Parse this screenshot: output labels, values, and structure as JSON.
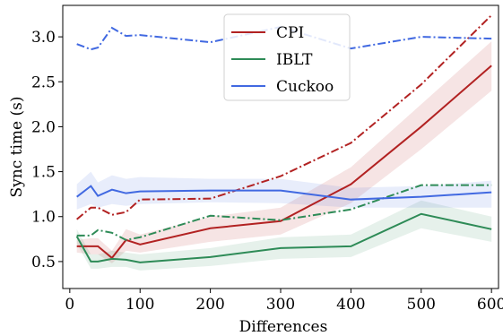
{
  "chart_data": {
    "type": "line",
    "xlabel": "Differences",
    "ylabel": "Sync time (s)",
    "xlim": [
      -10,
      610
    ],
    "ylim": [
      0.2,
      3.35
    ],
    "xticks": [
      0,
      100,
      200,
      300,
      400,
      500,
      600
    ],
    "yticks": [
      0.5,
      1.0,
      1.5,
      2.0,
      2.5,
      3.0
    ],
    "xtick_labels": [
      "0",
      "100",
      "200",
      "300",
      "400",
      "500",
      "600"
    ],
    "ytick_labels": [
      "0.5",
      "1.0",
      "1.5",
      "2.0",
      "2.5",
      "3.0"
    ],
    "grid": false,
    "legend": {
      "position": "top-center",
      "entries": [
        "CPI",
        "IBLT",
        "Cuckoo"
      ]
    },
    "series": [
      {
        "name": "CPI",
        "color": "#b22222",
        "x": [
          10,
          30,
          40,
          60,
          80,
          100,
          200,
          300,
          400,
          500,
          600
        ],
        "values": [
          0.67,
          0.67,
          0.67,
          0.54,
          0.74,
          0.69,
          0.87,
          0.95,
          1.36,
          2.0,
          2.68
        ],
        "band_lower": [
          0.6,
          0.58,
          0.58,
          0.48,
          0.62,
          0.6,
          0.72,
          0.8,
          1.15,
          1.75,
          2.4
        ],
        "band_upper": [
          0.74,
          0.76,
          0.76,
          0.62,
          0.86,
          0.8,
          1.0,
          1.1,
          1.55,
          2.25,
          2.95
        ],
        "secondary_values": [
          0.97,
          1.1,
          1.1,
          1.02,
          1.05,
          1.19,
          1.2,
          1.45,
          1.82,
          2.47,
          3.24
        ]
      },
      {
        "name": "IBLT",
        "color": "#2e8b57",
        "x": [
          10,
          30,
          40,
          60,
          80,
          100,
          200,
          300,
          400,
          500,
          600
        ],
        "values": [
          0.78,
          0.5,
          0.5,
          0.53,
          0.52,
          0.49,
          0.55,
          0.65,
          0.67,
          1.03,
          0.86
        ],
        "band_lower": [
          0.7,
          0.42,
          0.42,
          0.44,
          0.44,
          0.4,
          0.45,
          0.53,
          0.55,
          0.87,
          0.72
        ],
        "band_upper": [
          0.86,
          0.58,
          0.58,
          0.62,
          0.6,
          0.58,
          0.65,
          0.77,
          0.8,
          1.18,
          1.0
        ],
        "secondary_values": [
          0.79,
          0.79,
          0.85,
          0.82,
          0.74,
          0.77,
          1.01,
          0.96,
          1.08,
          1.35,
          1.35
        ]
      },
      {
        "name": "Cuckoo",
        "color": "#4169e1",
        "x": [
          10,
          30,
          40,
          60,
          80,
          100,
          200,
          300,
          400,
          500,
          600
        ],
        "values": [
          1.22,
          1.34,
          1.23,
          1.3,
          1.26,
          1.28,
          1.29,
          1.29,
          1.19,
          1.22,
          1.27
        ],
        "band_lower": [
          1.08,
          1.14,
          1.1,
          1.14,
          1.12,
          1.14,
          1.16,
          1.15,
          1.1,
          1.1,
          1.1
        ],
        "band_upper": [
          1.36,
          1.5,
          1.38,
          1.46,
          1.42,
          1.44,
          1.42,
          1.42,
          1.32,
          1.34,
          1.4
        ],
        "secondary_values": [
          2.92,
          2.86,
          2.88,
          3.1,
          3.01,
          3.02,
          2.94,
          3.11,
          2.87,
          3.0,
          2.98
        ]
      }
    ]
  }
}
